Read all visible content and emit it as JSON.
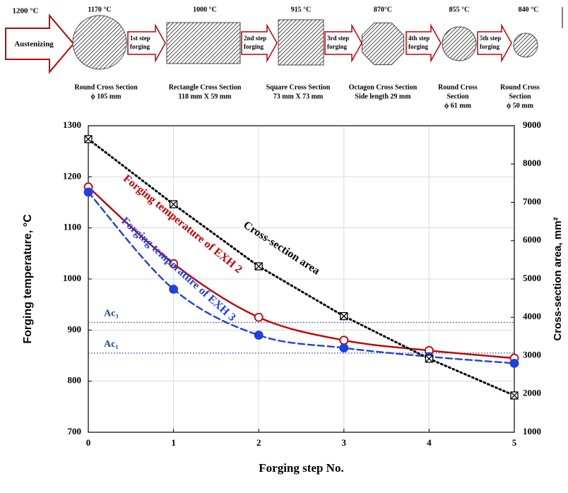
{
  "diagram": {
    "start_temp": "1200 °C",
    "start_label": "Austenizing",
    "stages": [
      {
        "temp": "1170 °C",
        "label": [
          "Round Cross Section",
          "ϕ 105 mm"
        ]
      },
      {
        "temp": "1000 °C",
        "label": [
          "Rectangle Cross Section",
          "118 mm X 59 mm"
        ]
      },
      {
        "temp": "915 °C",
        "label": [
          "Square Cross Section",
          "73 mm X 73 mm"
        ]
      },
      {
        "temp": "870°C",
        "label": [
          "Octagon Cross Section",
          "Side length  29 mm"
        ]
      },
      {
        "temp": "855 °C",
        "label": [
          "Round Cross",
          "Section",
          "ϕ 61 mm"
        ]
      },
      {
        "temp": "840 °C",
        "label": [
          "Round Cross",
          "Section",
          "ϕ 50 mm"
        ]
      }
    ],
    "steps": [
      [
        "1st step",
        "forging"
      ],
      [
        "2nd step",
        "forging"
      ],
      [
        "3rd step",
        "forging"
      ],
      [
        "4th step",
        "forging"
      ],
      [
        "5th step",
        "forging"
      ]
    ]
  },
  "chart_data": {
    "type": "line",
    "x_label": "Forging step No.",
    "y_label": "Forging temperature, °C",
    "y2_label": "Cross-section area, mm²",
    "x": [
      0,
      1,
      2,
      3,
      4,
      5
    ],
    "xlim": [
      0,
      5
    ],
    "xticks": [
      0,
      1,
      2,
      3,
      4,
      5
    ],
    "ylim": [
      700,
      1300
    ],
    "yticks": [
      700,
      800,
      900,
      1000,
      1100,
      1200,
      1300
    ],
    "y2lim": [
      1000,
      9000
    ],
    "y2ticks": [
      1000,
      2000,
      3000,
      4000,
      5000,
      6000,
      7000,
      8000,
      9000
    ],
    "grid": true,
    "series": [
      {
        "name": "Forging temperature of EXH 2",
        "color": "#c00000",
        "style": "solid",
        "marker": "open-circle",
        "values": [
          1180,
          1030,
          925,
          880,
          860,
          845
        ]
      },
      {
        "name": "Forging temperature of EXH 3",
        "color": "#1f3fe0",
        "style": "dashed",
        "marker": "filled-circle",
        "values": [
          1170,
          980,
          890,
          865,
          848,
          835
        ]
      },
      {
        "name": "Cross-section area",
        "color": "#000000",
        "style": "dotted",
        "marker": "boxed-x",
        "axis": "y2",
        "values": [
          8650,
          6950,
          5330,
          4030,
          2920,
          1960
        ]
      }
    ],
    "reference_lines": [
      {
        "label": "Ac₃",
        "value": 915,
        "color": "#1f3fa0"
      },
      {
        "label": "Ac₁",
        "value": 855,
        "color": "#1f3fa0"
      }
    ]
  }
}
